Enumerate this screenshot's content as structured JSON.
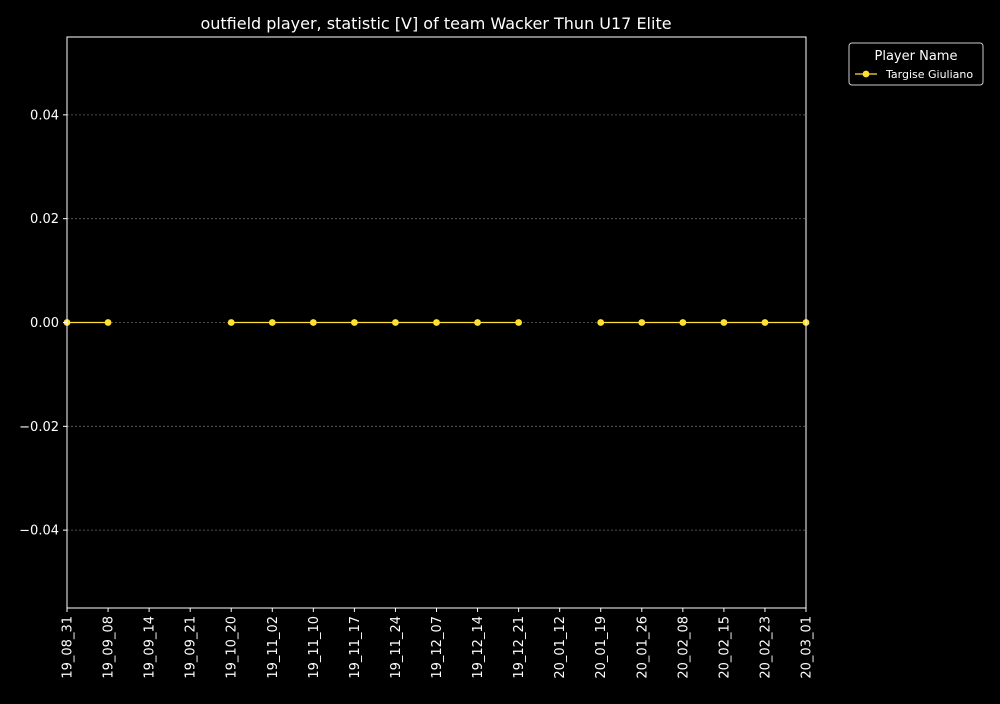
{
  "chart_data": {
    "type": "line",
    "title": "outfield player, statistic [V] of team Wacker Thun U17 Elite",
    "xlabel": "",
    "ylabel": "",
    "categories": [
      "19_08_31",
      "19_09_08",
      "19_09_14",
      "19_09_21",
      "19_10_20",
      "19_11_02",
      "19_11_10",
      "19_11_17",
      "19_11_24",
      "19_12_07",
      "19_12_14",
      "19_12_21",
      "20_01_12",
      "20_01_19",
      "20_01_26",
      "20_02_08",
      "20_02_15",
      "20_02_23",
      "20_03_01"
    ],
    "ylim": [
      -0.055,
      0.055
    ],
    "yticks": [
      -0.04,
      -0.02,
      0.0,
      0.02,
      0.04
    ],
    "ytick_labels": [
      "−0.04",
      "−0.02",
      "0.00",
      "0.02",
      "0.04"
    ],
    "grid": "y-dotted",
    "legend": {
      "title": "Player Name",
      "placement": "outside-top-right"
    },
    "series": [
      {
        "name": "Targise Giuliano",
        "color": "#ffe033",
        "values": [
          0,
          0,
          null,
          null,
          0,
          0,
          0,
          0,
          0,
          0,
          0,
          0,
          null,
          0,
          0,
          0,
          0,
          0,
          0
        ]
      }
    ]
  },
  "colors": {
    "background": "#000000",
    "axes": "#ffffff",
    "text": "#ffffff",
    "grid": "#666666"
  }
}
